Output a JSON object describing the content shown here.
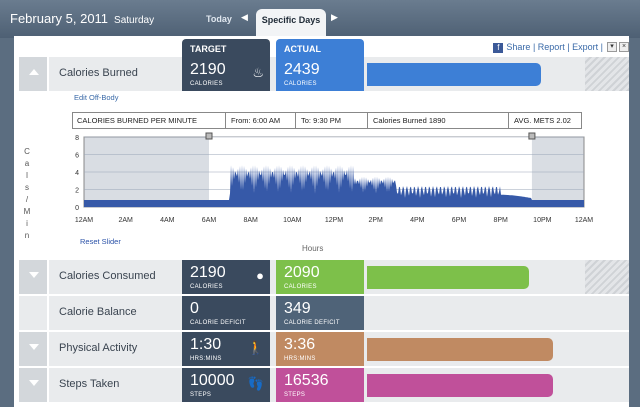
{
  "header": {
    "date": "February 5, 2011",
    "day": "Saturday",
    "tab_today": "Today",
    "tab_specific": "Specific Days"
  },
  "tools": {
    "share": "Share",
    "report": "Report",
    "export": "Export"
  },
  "columns": {
    "target": "TARGET",
    "actual": "ACTUAL"
  },
  "calories_burned": {
    "label": "Calories Burned",
    "target": "2190",
    "target_unit": "CALORIES",
    "actual": "2439",
    "actual_unit": "CALORIES",
    "fill": 0.87
  },
  "edit_off_body": "Edit Off-Body",
  "info": {
    "title": "CALORIES BURNED PER MINUTE",
    "from": "From: 6:00 AM",
    "to": "To: 9:30 PM",
    "burned": "Calories Burned  1890",
    "mets": "AVG. METS 2.02"
  },
  "chart_data": {
    "type": "area",
    "ylabel": "Cals/Min",
    "xlabel": "Hours",
    "ylim": [
      0,
      8
    ],
    "yticks": [
      "0",
      "2",
      "4",
      "6",
      "8"
    ],
    "xticks": [
      "12AM",
      "2AM",
      "4AM",
      "6AM",
      "8AM",
      "10AM",
      "12PM",
      "2PM",
      "4PM",
      "6PM",
      "8PM",
      "10PM",
      "12AM"
    ],
    "selection": [
      "6:00 AM",
      "9:30 PM"
    ]
  },
  "reset_slider": "Reset Slider",
  "calories_consumed": {
    "label": "Calories Consumed",
    "target": "2190",
    "target_unit": "CALORIES",
    "actual": "2090",
    "actual_unit": "CALORIES",
    "fill": 0.81,
    "color": "#7dc04a"
  },
  "calorie_balance": {
    "label": "Calorie Balance",
    "target": "0",
    "target_unit": "CALORIE DEFICIT",
    "actual": "349",
    "actual_unit": "CALORIE DEFICIT"
  },
  "physical_activity": {
    "label": "Physical Activity",
    "target": "1:30",
    "target_unit": "HRS:MINS",
    "actual": "3:36",
    "actual_unit": "HRS:MINS",
    "fill": 0.93,
    "color": "#c08a62"
  },
  "steps_taken": {
    "label": "Steps Taken",
    "target": "10000",
    "target_unit": "STEPS",
    "actual": "16536",
    "actual_unit": "STEPS",
    "fill": 0.93,
    "color": "#c0509a"
  }
}
